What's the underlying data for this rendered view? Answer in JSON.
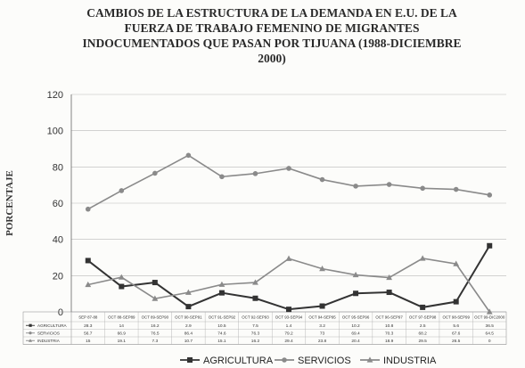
{
  "title_lines": [
    "CAMBIOS DE LA ESTRUCTURA DE LA DEMANDA EN E.U. DE LA",
    "FUERZA DE TRABAJO FEMENINO DE MIGRANTES",
    "INDOCUMENTADOS QUE PASAN POR TIJUANA   (1988-DICIEMBRE",
    "2000)"
  ],
  "chart_data": {
    "type": "line",
    "ylabel": "PORCENTAJE",
    "ylim": [
      0,
      120
    ],
    "yticks": [
      0,
      20,
      40,
      60,
      80,
      100,
      120
    ],
    "grid": true,
    "legend_position": "bottom",
    "categories": [
      "SEP 87-88",
      "OCT 88-SEP89",
      "OCT 89-SEP90",
      "OCT 90-SEP91",
      "OCT 91-SEP92",
      "OCT 92-SEP93",
      "OCT 93-SEP94",
      "OCT 94-SEP95",
      "OCT 95-SEP96",
      "OCT 96-SEP97",
      "OCT 97-SEP98",
      "OCT 98-SEP99",
      "OCT 99-DIC2000"
    ],
    "series": [
      {
        "name": "AGRICULTURA",
        "marker": "square",
        "color": "#333333",
        "values": [
          28.3,
          14,
          16.2,
          2.9,
          10.5,
          7.5,
          1.4,
          3.2,
          10.2,
          10.8,
          2.5,
          5.6,
          36.5
        ],
        "table_labels": [
          "28.3",
          "14",
          "16.2",
          "2.9",
          "10.5",
          "7.5",
          "1.4",
          "3.2",
          "10.2",
          "10.8",
          "2.5",
          "5.6",
          "36.5"
        ]
      },
      {
        "name": "SERVICIOS",
        "marker": "circle",
        "color": "#8a8a8a",
        "values": [
          56.7,
          66.9,
          76.5,
          86.4,
          74.6,
          76.3,
          79.2,
          73,
          69.4,
          70.3,
          68.2,
          67.6,
          64.5
        ],
        "table_labels": [
          "56.7",
          "66.9",
          "76.5",
          "86.4",
          "74.6",
          "76.3",
          "79.2",
          "73",
          "69.4",
          "70.3",
          "68.2",
          "67.6",
          "64.5"
        ]
      },
      {
        "name": "INDUSTRIA",
        "marker": "triangle",
        "color": "#8a8a8a",
        "values": [
          15,
          19.1,
          7.3,
          10.7,
          15.1,
          16.2,
          29.4,
          23.8,
          20.4,
          18.9,
          29.5,
          26.5,
          0
        ],
        "table_labels": [
          "15",
          "19.1",
          "7.3",
          "10.7",
          "15.1",
          "16.2",
          "29.4",
          "23.8",
          "20.4",
          "18.9",
          "29.5",
          "26.5",
          "0"
        ]
      }
    ]
  }
}
